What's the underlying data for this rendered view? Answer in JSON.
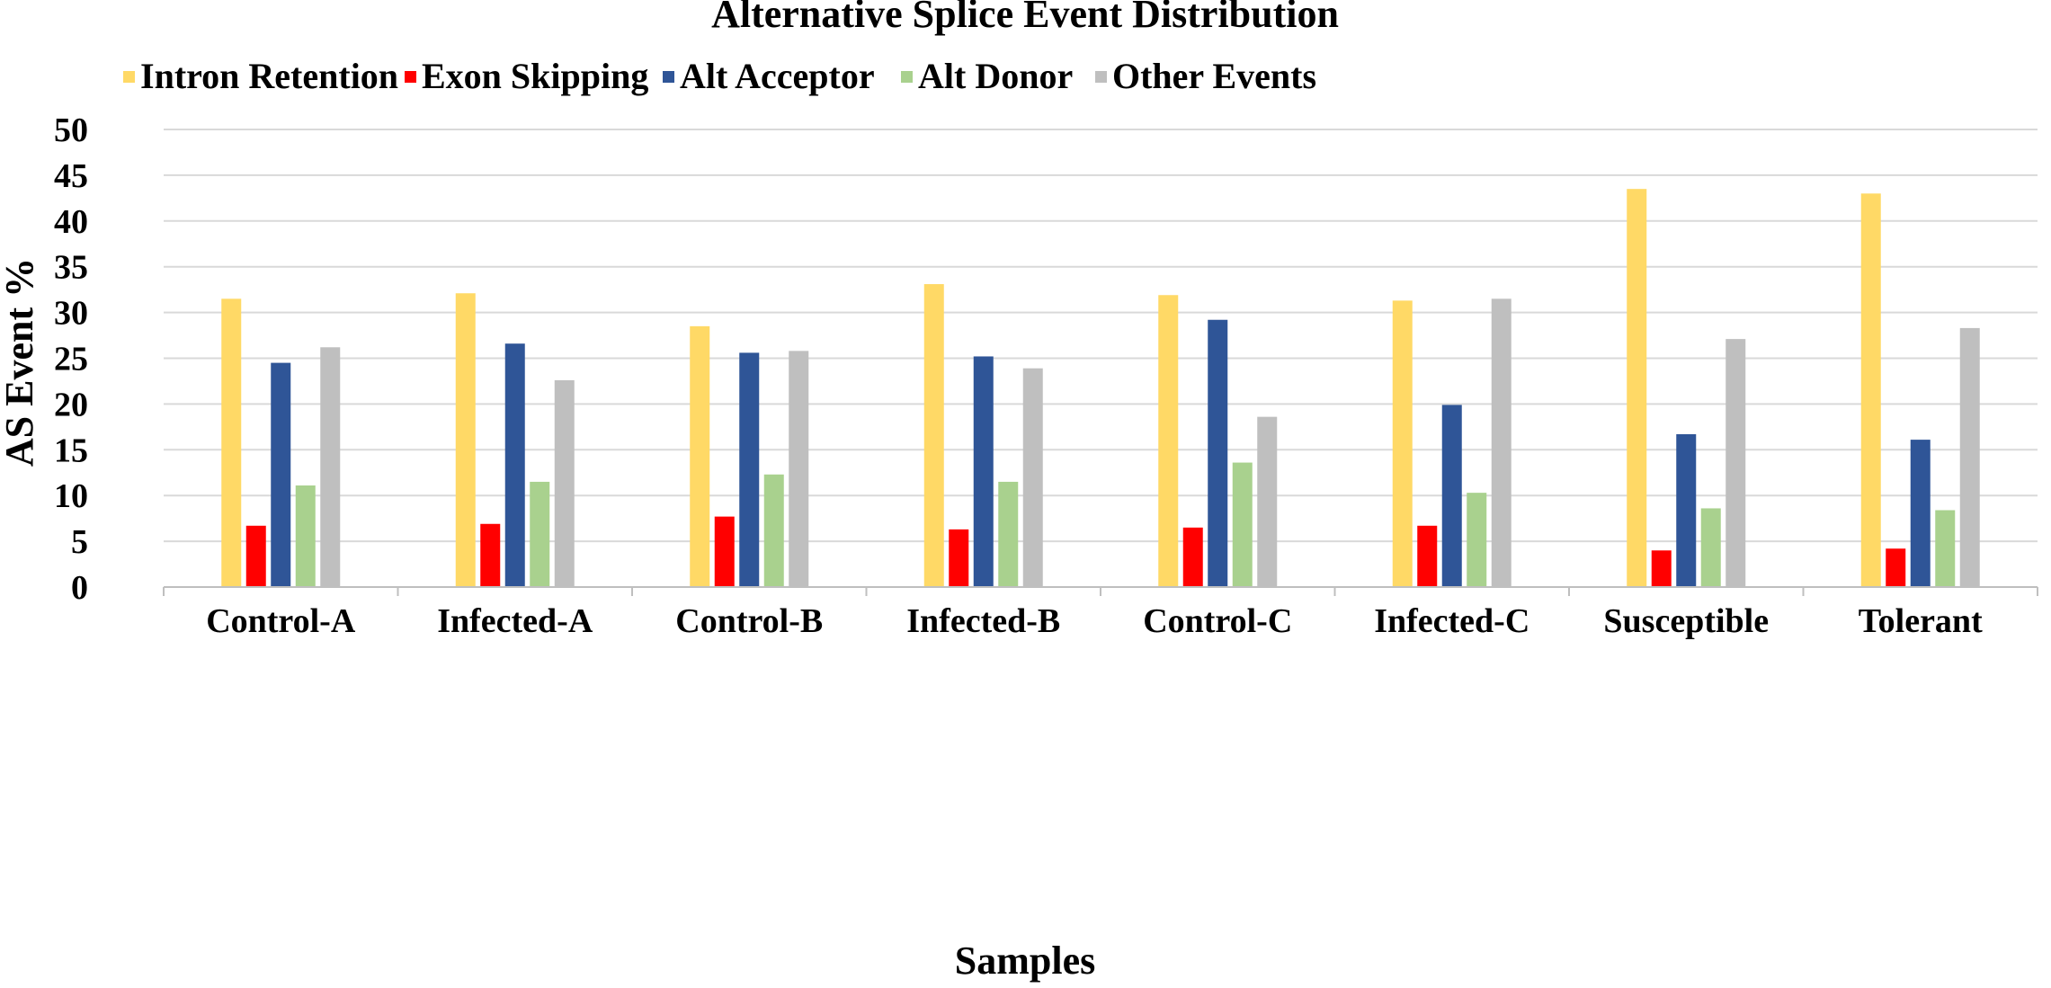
{
  "chart_data": {
    "type": "bar",
    "title": "Alternative Splice Event Distribution",
    "xlabel": "Samples",
    "ylabel": "AS Event %",
    "ylim": [
      0,
      50
    ],
    "yticks": [
      "0",
      "5",
      "10",
      "15",
      "20",
      "25",
      "30",
      "35",
      "40",
      "45",
      "50"
    ],
    "grid": true,
    "legend_position": "top",
    "categories": [
      "Control-A",
      "Infected-A",
      "Control-B",
      "Infected-B",
      "Control-C",
      "Infected-C",
      "Susceptible",
      "Tolerant"
    ],
    "series": [
      {
        "name": "Intron Retention",
        "color": "#FFD966",
        "values": [
          31.5,
          32.1,
          28.5,
          33.1,
          31.9,
          31.3,
          43.5,
          43.0
        ]
      },
      {
        "name": "Exon Skipping",
        "color": "#FF0000",
        "values": [
          6.7,
          6.9,
          7.7,
          6.3,
          6.5,
          6.7,
          4.0,
          4.2
        ]
      },
      {
        "name": "Alt Acceptor",
        "color": "#2F5597",
        "values": [
          24.5,
          26.6,
          25.6,
          25.2,
          29.2,
          19.9,
          16.7,
          16.1
        ]
      },
      {
        "name": "Alt Donor",
        "color": "#A9D18E",
        "values": [
          11.1,
          11.5,
          12.3,
          11.5,
          13.6,
          10.3,
          8.6,
          8.4
        ]
      },
      {
        "name": "Other Events",
        "color": "#BFBFBF",
        "values": [
          26.2,
          22.6,
          25.8,
          23.9,
          18.6,
          31.5,
          27.1,
          28.3
        ]
      }
    ]
  }
}
